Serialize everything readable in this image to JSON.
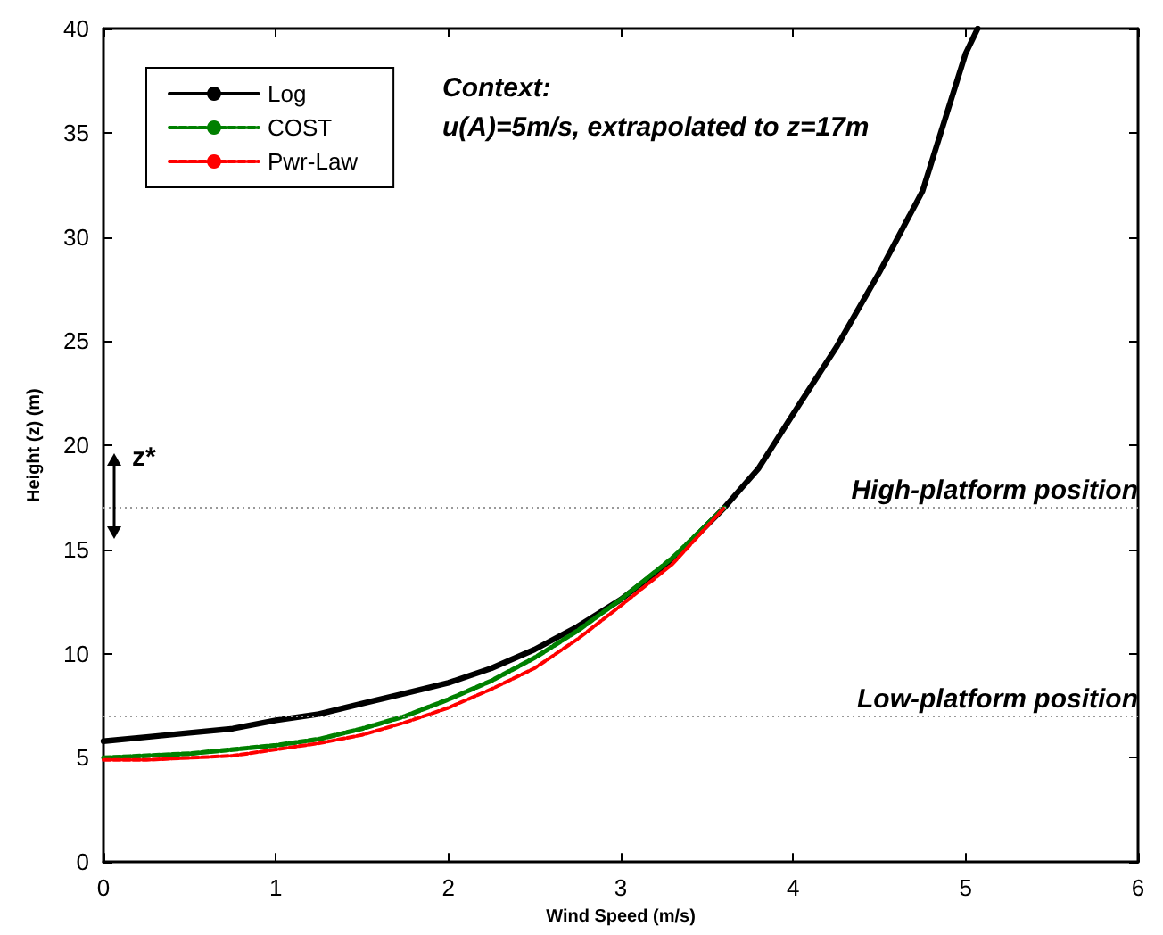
{
  "chart_data": {
    "type": "line",
    "xlabel": "Wind Speed (m/s)",
    "ylabel": "Height (z) (m)",
    "xlim": [
      0,
      6
    ],
    "xticks": [
      0,
      1,
      2,
      3,
      4,
      5,
      6
    ],
    "ylim": [
      0,
      40
    ],
    "yticks": [
      0,
      5,
      10,
      15,
      20,
      25,
      30,
      35,
      40
    ],
    "grid": false,
    "legend": "top left",
    "series": [
      {
        "name": "Log",
        "color": "#000000",
        "line_style": "solid",
        "x": [
          0,
          0.25,
          0.5,
          0.75,
          1,
          1.25,
          1.5,
          1.75,
          2,
          2.25,
          2.5,
          2.75,
          3,
          3.3,
          3.6,
          3.8,
          4,
          4.25,
          4.5,
          4.75,
          5,
          5.07
        ],
        "values": [
          5.8,
          6,
          6.2,
          6.4,
          6.8,
          7.1,
          7.6,
          8.1,
          8.6,
          9.3,
          10.2,
          11.3,
          12.6,
          14.5,
          17,
          18.9,
          21.5,
          24.7,
          28.3,
          32.2,
          38.8,
          40
        ]
      },
      {
        "name": "COST",
        "color": "#008000",
        "line_style": "dashed",
        "x": [
          0,
          0.25,
          0.5,
          0.75,
          1,
          1.25,
          1.5,
          1.75,
          2,
          2.25,
          2.5,
          2.75,
          3,
          3.3,
          3.6
        ],
        "values": [
          5,
          5.1,
          5.2,
          5.4,
          5.6,
          5.9,
          6.4,
          7,
          7.8,
          8.7,
          9.8,
          11.1,
          12.6,
          14.6,
          17
        ]
      },
      {
        "name": "Pwr-Law",
        "color": "#ff0000",
        "line_style": "dashed",
        "x": [
          0,
          0.25,
          0.5,
          0.75,
          1,
          1.25,
          1.5,
          1.75,
          2,
          2.25,
          2.5,
          2.75,
          3,
          3.3,
          3.6
        ],
        "values": [
          4.9,
          4.9,
          5.0,
          5.1,
          5.4,
          5.7,
          6.1,
          6.7,
          7.4,
          8.3,
          9.3,
          10.7,
          12.3,
          14.3,
          17
        ]
      }
    ],
    "ref_lines": [
      {
        "axis": "y",
        "value": 17,
        "label": "High-platform position",
        "color": "#999999",
        "line_style": "dotted"
      },
      {
        "axis": "y",
        "value": 7,
        "label": "Low-platform position",
        "color": "#999999",
        "line_style": "dotted"
      }
    ],
    "annotations": [
      "Context:",
      "u(A)=5m/s, extrapolated to z=17m",
      "z*"
    ]
  }
}
